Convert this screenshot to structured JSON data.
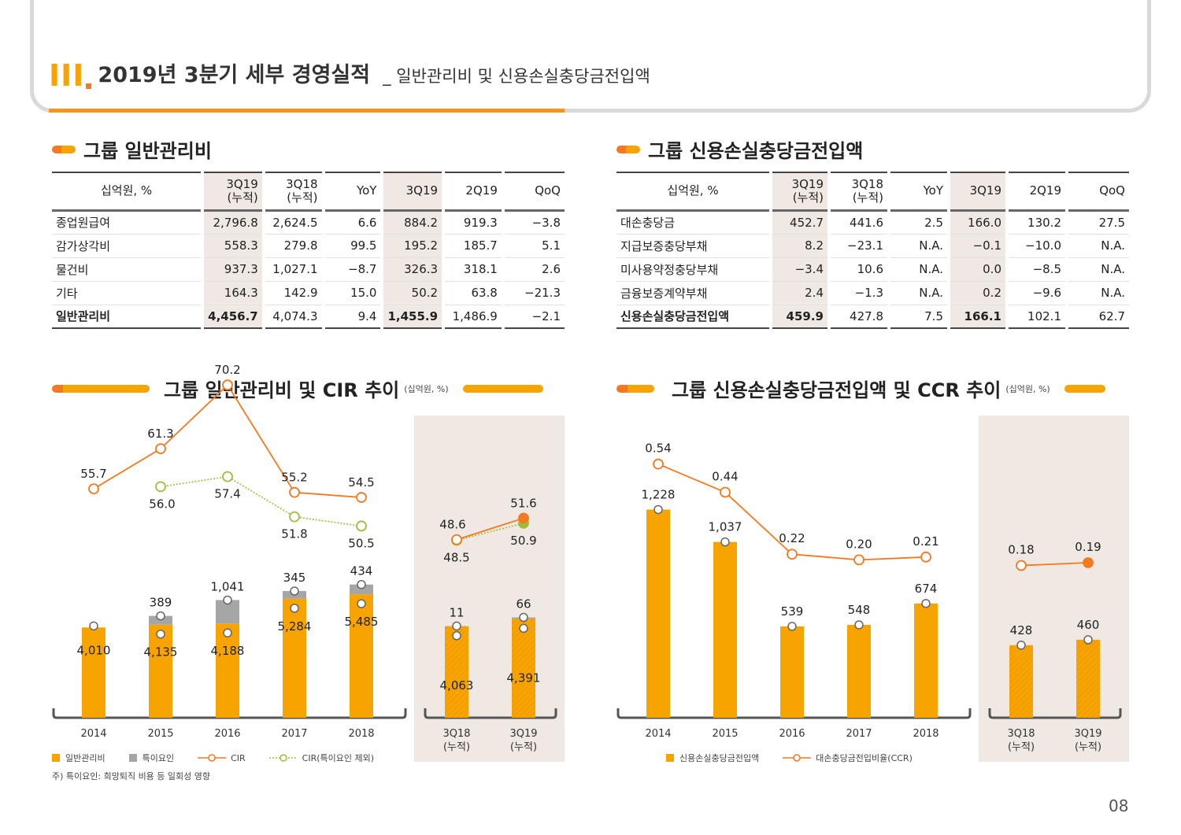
{
  "header": {
    "roman": "III",
    "title": "2019년 3분기 세부 경영실적",
    "subtitle": "_ 일반관리비 및 신용손실충당금전입액"
  },
  "colors": {
    "accent": "#f7a400",
    "accent_dark": "#f47920",
    "special": "#a6a6a6",
    "cir_ex": "#9cbf3b",
    "shade": "#efe8e3"
  },
  "sections": {
    "left_title": "그룹 일반관리비",
    "right_title": "그룹 신용손실충당금전입액",
    "left_chart_title": "그룹 일반관리비 및 CIR 추이",
    "left_chart_unit": "(십억원, %)",
    "right_chart_title": "그룹 신용손실충당금전입액 및 CCR 추이",
    "right_chart_unit": "(십억원, %)"
  },
  "table_left": {
    "headers": [
      "십억원, %",
      "3Q19\n(누적)",
      "3Q18\n(누적)",
      "YoY",
      "3Q19",
      "2Q19",
      "QoQ"
    ],
    "rows": [
      [
        "종업원급여",
        "2,796.8",
        "2,624.5",
        "6.6",
        "884.2",
        "919.3",
        "-3.8"
      ],
      [
        "감가상각비",
        "558.3",
        "279.8",
        "99.5",
        "195.2",
        "185.7",
        "5.1"
      ],
      [
        "물건비",
        "937.3",
        "1,027.1",
        "-8.7",
        "326.3",
        "318.1",
        "2.6"
      ],
      [
        "기타",
        "164.3",
        "142.9",
        "15.0",
        "50.2",
        "63.8",
        "-21.3"
      ],
      [
        "일반관리비",
        "4,456.7",
        "4,074.3",
        "9.4",
        "1,455.9",
        "1,486.9",
        "-2.1"
      ]
    ]
  },
  "table_right": {
    "headers": [
      "십억원, %",
      "3Q19\n(누적)",
      "3Q18\n(누적)",
      "YoY",
      "3Q19",
      "2Q19",
      "QoQ"
    ],
    "rows": [
      [
        "대손충당금",
        "452.7",
        "441.6",
        "2.5",
        "166.0",
        "130.2",
        "27.5"
      ],
      [
        "지급보증충당부채",
        "8.2",
        "-23.1",
        "N.A.",
        "-0.1",
        "-10.0",
        "N.A."
      ],
      [
        "미사용약정충당부채",
        "-3.4",
        "10.6",
        "N.A.",
        "0.0",
        "-8.5",
        "N.A."
      ],
      [
        "금융보증계약부채",
        "2.4",
        "-1.3",
        "N.A.",
        "0.2",
        "-9.6",
        "N.A."
      ],
      [
        "신용손실충당금전입액",
        "459.9",
        "427.8",
        "7.5",
        "166.1",
        "102.1",
        "62.7"
      ]
    ]
  },
  "chart_data": [
    {
      "type": "bar",
      "title": "그룹 일반관리비 및 CIR 추이",
      "categories": [
        "2014",
        "2015",
        "2016",
        "2017",
        "2018",
        "3Q18\n(누적)",
        "3Q19\n(누적)"
      ],
      "series": [
        {
          "name": "일반관리비",
          "type": "bar",
          "values": [
            4010,
            4135,
            4188,
            5284,
            5485,
            4063,
            4391
          ]
        },
        {
          "name": "특이요인",
          "type": "bar",
          "stacked": true,
          "values": [
            null,
            389,
            1041,
            345,
            434,
            11,
            66
          ]
        },
        {
          "name": "CIR",
          "type": "line",
          "values": [
            55.7,
            61.3,
            70.2,
            55.2,
            54.5,
            48.6,
            51.6
          ]
        },
        {
          "name": "CIR(특이요인 제외)",
          "type": "line",
          "values": [
            null,
            56.0,
            57.4,
            51.8,
            50.5,
            48.5,
            50.9
          ]
        }
      ],
      "labels": {
        "bar": [
          "4,010",
          "4,135",
          "4,188",
          "5,284",
          "5,485",
          "4,063",
          "4,391"
        ],
        "special": [
          "",
          "389",
          "1,041",
          "345",
          "434",
          "11",
          "66"
        ],
        "cir": [
          "55.7",
          "61.3",
          "70.2",
          "55.2",
          "54.5",
          "48.6",
          "51.6"
        ],
        "cir_ex": [
          "",
          "56.0",
          "57.4",
          "51.8",
          "50.5",
          "48.5",
          "50.9"
        ]
      },
      "legend": [
        "일반관리비",
        "특이요인",
        "CIR",
        "CIR(특이요인 제외)"
      ]
    },
    {
      "type": "bar",
      "title": "그룹 신용손실충당금전입액 및 CCR 추이",
      "categories": [
        "2014",
        "2015",
        "2016",
        "2017",
        "2018",
        "3Q18\n(누적)",
        "3Q19\n(누적)"
      ],
      "series": [
        {
          "name": "신용손실충당금전입액",
          "type": "bar",
          "values": [
            1228,
            1037,
            539,
            548,
            674,
            428,
            460
          ]
        },
        {
          "name": "대손충당금전입비율(CCR)",
          "type": "line",
          "values": [
            0.54,
            0.44,
            0.22,
            0.2,
            0.21,
            0.18,
            0.19
          ]
        }
      ],
      "labels": {
        "bar": [
          "1,228",
          "1,037",
          "539",
          "548",
          "674",
          "428",
          "460"
        ],
        "ccr": [
          "0.54",
          "0.44",
          "0.22",
          "0.20",
          "0.21",
          "0.18",
          "0.19"
        ]
      },
      "legend": [
        "신용손실충당금전입액",
        "대손충당금전입비율(CCR)"
      ]
    }
  ],
  "footnote": "주) 특이요인: 희망퇴직 비용 등 일회성 영향",
  "page_number": "08"
}
